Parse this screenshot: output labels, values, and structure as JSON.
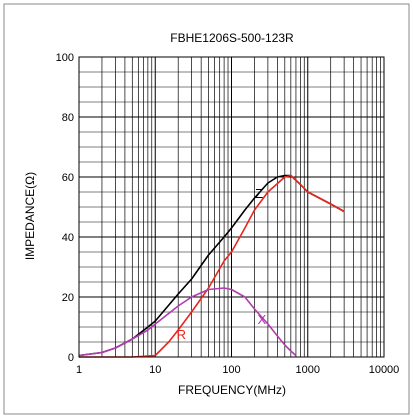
{
  "chart_data": {
    "type": "line",
    "title": "FBHE1206S-500-123R",
    "xlabel": "FREQUENCY(MHz)",
    "ylabel": "IMPEDANCE(Ω)",
    "xscale": "log",
    "xlim": [
      1,
      10000
    ],
    "ylim": [
      0,
      100
    ],
    "xticks": [
      1,
      10,
      100,
      1000,
      10000
    ],
    "xtick_labels": [
      "1",
      "10",
      "100",
      "1000",
      "10000"
    ],
    "yticks": [
      0,
      20,
      40,
      60,
      80,
      100
    ],
    "ytick_labels": [
      "0",
      "20",
      "40",
      "60",
      "80",
      "100"
    ],
    "grid": true,
    "legend": "none",
    "series": [
      {
        "name": "Z",
        "color": "#000000",
        "label_at": [
          230,
          53
        ],
        "points": [
          [
            1,
            0.5
          ],
          [
            2,
            1.5
          ],
          [
            3,
            3
          ],
          [
            5,
            6
          ],
          [
            8,
            10
          ],
          [
            10,
            12
          ],
          [
            20,
            21
          ],
          [
            30,
            26
          ],
          [
            50,
            34
          ],
          [
            80,
            40
          ],
          [
            100,
            43
          ],
          [
            150,
            49
          ],
          [
            200,
            53
          ],
          [
            300,
            58
          ],
          [
            400,
            60
          ],
          [
            500,
            60.5
          ],
          [
            600,
            60.5
          ],
          [
            800,
            57.5
          ],
          [
            1000,
            55
          ],
          [
            2000,
            51
          ],
          [
            3000,
            48.5
          ]
        ]
      },
      {
        "name": "R",
        "color": "#e8261e",
        "label_at": [
          22,
          6
        ],
        "points": [
          [
            1,
            0
          ],
          [
            5,
            0
          ],
          [
            10,
            0.5
          ],
          [
            15,
            5
          ],
          [
            20,
            9
          ],
          [
            30,
            15
          ],
          [
            50,
            23
          ],
          [
            80,
            32
          ],
          [
            100,
            35
          ],
          [
            150,
            43
          ],
          [
            200,
            49
          ],
          [
            300,
            55
          ],
          [
            500,
            60
          ],
          [
            600,
            60.5
          ],
          [
            800,
            57.5
          ],
          [
            1000,
            55
          ],
          [
            2000,
            51
          ],
          [
            3000,
            48.5
          ]
        ]
      },
      {
        "name": "X",
        "color": "#b03cb0",
        "label_at": [
          250,
          11
        ],
        "points": [
          [
            1,
            0.5
          ],
          [
            2,
            1.5
          ],
          [
            3,
            3
          ],
          [
            5,
            6
          ],
          [
            8,
            9
          ],
          [
            10,
            11
          ],
          [
            20,
            17
          ],
          [
            30,
            20
          ],
          [
            50,
            22.5
          ],
          [
            80,
            23
          ],
          [
            100,
            22.5
          ],
          [
            150,
            20
          ],
          [
            200,
            16
          ],
          [
            300,
            11
          ],
          [
            400,
            7
          ],
          [
            500,
            4
          ],
          [
            600,
            2
          ],
          [
            700,
            0.5
          ]
        ]
      }
    ]
  }
}
